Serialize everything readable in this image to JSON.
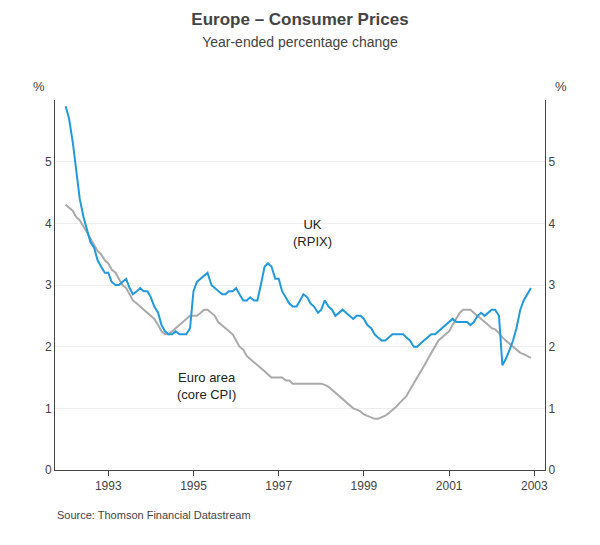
{
  "chart_data": {
    "type": "line",
    "title": "Europe – Consumer Prices",
    "subtitle": "Year-ended percentage change",
    "source": "Source: Thomson Financial Datastream",
    "ylabel": "%",
    "y2label": "%",
    "xlim": [
      1991.75,
      2003.25
    ],
    "xticks": [
      1993,
      1995,
      1997,
      1999,
      2001,
      2003
    ],
    "ylim": [
      0,
      6
    ],
    "yticks": [
      0,
      1,
      2,
      3,
      4,
      5
    ],
    "y2lim": [
      0,
      6
    ],
    "y2ticks": [
      0,
      1,
      2,
      3,
      4,
      5
    ],
    "grid": true,
    "x": [
      1992.0,
      1992.08,
      1992.17,
      1992.25,
      1992.33,
      1992.42,
      1992.5,
      1992.58,
      1992.67,
      1992.75,
      1992.83,
      1992.92,
      1993.0,
      1993.08,
      1993.17,
      1993.25,
      1993.33,
      1993.42,
      1993.5,
      1993.58,
      1993.67,
      1993.75,
      1993.83,
      1993.92,
      1994.0,
      1994.08,
      1994.17,
      1994.25,
      1994.33,
      1994.42,
      1994.5,
      1994.58,
      1994.67,
      1994.75,
      1994.83,
      1994.92,
      1995.0,
      1995.08,
      1995.17,
      1995.25,
      1995.33,
      1995.42,
      1995.5,
      1995.58,
      1995.67,
      1995.75,
      1995.83,
      1995.92,
      1996.0,
      1996.08,
      1996.17,
      1996.25,
      1996.33,
      1996.42,
      1996.5,
      1996.58,
      1996.67,
      1996.75,
      1996.83,
      1996.92,
      1997.0,
      1997.08,
      1997.17,
      1997.25,
      1997.33,
      1997.42,
      1997.5,
      1997.58,
      1997.67,
      1997.75,
      1997.83,
      1997.92,
      1998.0,
      1998.08,
      1998.17,
      1998.25,
      1998.33,
      1998.42,
      1998.5,
      1998.58,
      1998.67,
      1998.75,
      1998.83,
      1998.92,
      1999.0,
      1999.08,
      1999.17,
      1999.25,
      1999.33,
      1999.42,
      1999.5,
      1999.58,
      1999.67,
      1999.75,
      1999.83,
      1999.92,
      2000.0,
      2000.08,
      2000.17,
      2000.25,
      2000.33,
      2000.42,
      2000.5,
      2000.58,
      2000.67,
      2000.75,
      2000.83,
      2000.92,
      2001.0,
      2001.08,
      2001.17,
      2001.25,
      2001.33,
      2001.42,
      2001.5,
      2001.58,
      2001.67,
      2001.75,
      2001.83,
      2001.92,
      2002.0,
      2002.08,
      2002.17,
      2002.25,
      2002.33,
      2002.42,
      2002.5,
      2002.58,
      2002.67,
      2002.75,
      2002.83,
      2002.92
    ],
    "series": [
      {
        "color": "#aaaaaa",
        "values": [
          4.3,
          4.25,
          4.2,
          4.1,
          4.05,
          3.95,
          3.85,
          3.75,
          3.65,
          3.55,
          3.5,
          3.4,
          3.35,
          3.25,
          3.2,
          3.1,
          3.0,
          2.95,
          2.85,
          2.75,
          2.7,
          2.65,
          2.6,
          2.55,
          2.5,
          2.45,
          2.35,
          2.25,
          2.2,
          2.2,
          2.25,
          2.3,
          2.35,
          2.4,
          2.45,
          2.5,
          2.5,
          2.5,
          2.55,
          2.6,
          2.6,
          2.55,
          2.5,
          2.4,
          2.35,
          2.3,
          2.25,
          2.2,
          2.1,
          2.0,
          1.95,
          1.85,
          1.8,
          1.75,
          1.7,
          1.65,
          1.6,
          1.55,
          1.5,
          1.5,
          1.5,
          1.5,
          1.45,
          1.45,
          1.4,
          1.4,
          1.4,
          1.4,
          1.4,
          1.4,
          1.4,
          1.4,
          1.4,
          1.38,
          1.35,
          1.3,
          1.25,
          1.2,
          1.15,
          1.1,
          1.05,
          1.0,
          0.98,
          0.95,
          0.9,
          0.88,
          0.85,
          0.83,
          0.83,
          0.85,
          0.88,
          0.92,
          0.97,
          1.02,
          1.08,
          1.15,
          1.2,
          1.3,
          1.4,
          1.5,
          1.6,
          1.7,
          1.8,
          1.9,
          2.0,
          2.1,
          2.15,
          2.2,
          2.25,
          2.35,
          2.45,
          2.55,
          2.6,
          2.6,
          2.6,
          2.55,
          2.5,
          2.45,
          2.4,
          2.35,
          2.3,
          2.28,
          2.22,
          2.15,
          2.1,
          2.05,
          2.0,
          1.95,
          1.9,
          1.88,
          1.85,
          1.82
        ]
      },
      {
        "color": "#2299dd",
        "values": [
          5.9,
          5.7,
          5.3,
          4.8,
          4.4,
          4.1,
          3.9,
          3.7,
          3.6,
          3.4,
          3.3,
          3.2,
          3.2,
          3.05,
          3.0,
          3.0,
          3.05,
          3.1,
          2.95,
          2.85,
          2.9,
          2.95,
          2.9,
          2.9,
          2.8,
          2.65,
          2.55,
          2.35,
          2.25,
          2.2,
          2.2,
          2.25,
          2.2,
          2.2,
          2.2,
          2.3,
          2.9,
          3.05,
          3.1,
          3.15,
          3.2,
          3.0,
          2.95,
          2.9,
          2.85,
          2.85,
          2.9,
          2.9,
          2.95,
          2.85,
          2.75,
          2.75,
          2.8,
          2.75,
          2.75,
          3.0,
          3.3,
          3.35,
          3.3,
          3.1,
          3.1,
          2.9,
          2.8,
          2.7,
          2.65,
          2.65,
          2.75,
          2.85,
          2.8,
          2.7,
          2.65,
          2.55,
          2.6,
          2.75,
          2.65,
          2.6,
          2.5,
          2.55,
          2.6,
          2.55,
          2.5,
          2.45,
          2.5,
          2.5,
          2.45,
          2.35,
          2.3,
          2.2,
          2.15,
          2.1,
          2.1,
          2.15,
          2.2,
          2.2,
          2.2,
          2.2,
          2.15,
          2.1,
          2.0,
          2.0,
          2.05,
          2.1,
          2.15,
          2.2,
          2.2,
          2.25,
          2.3,
          2.35,
          2.4,
          2.45,
          2.4,
          2.4,
          2.4,
          2.4,
          2.35,
          2.4,
          2.5,
          2.55,
          2.5,
          2.55,
          2.6,
          2.6,
          2.5,
          1.7,
          1.8,
          1.95,
          2.1,
          2.3,
          2.6,
          2.75,
          2.85,
          2.95
        ]
      }
    ],
    "annotations": [
      {
        "lines": [
          "UK",
          "(RPIX)"
        ],
        "x": 1997.8,
        "y": 3.55
      },
      {
        "lines": [
          "Euro area",
          "(core CPI)"
        ],
        "x": 1995.3,
        "y": 1.65
      }
    ]
  }
}
